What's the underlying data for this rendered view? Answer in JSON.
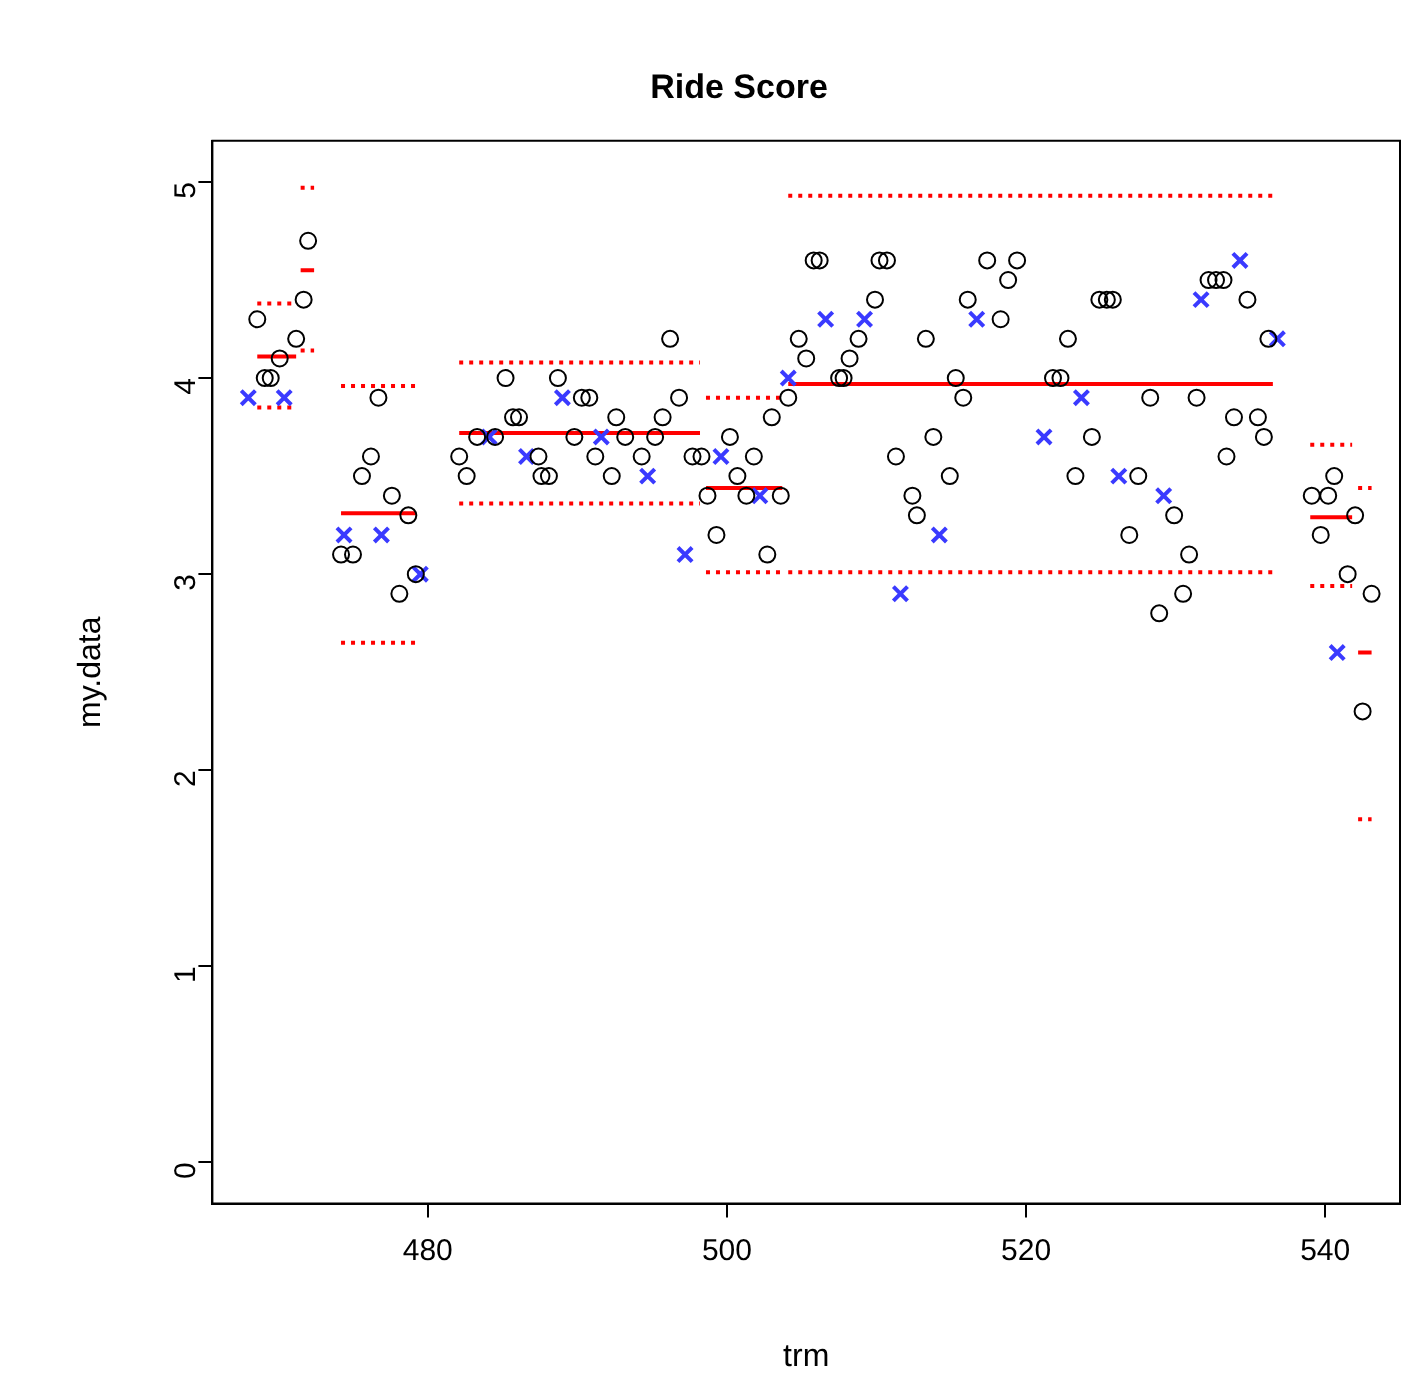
{
  "chart_data": {
    "type": "scatter",
    "title": "Ride Score",
    "xlabel": "trm",
    "ylabel": "my.data",
    "xlim": [
      465.6,
      545
    ],
    "ylim": [
      -0.21,
      5.21
    ],
    "xticks": [
      480,
      500,
      520,
      540
    ],
    "yticks": [
      0,
      1,
      2,
      3,
      4,
      5
    ],
    "grid": false,
    "legend": false,
    "series": [
      {
        "type": "scatter",
        "marker": "circle",
        "color": "#000000",
        "x": [
          468.6,
          469.1,
          469.5,
          470.1,
          471.2,
          471.7,
          472.0,
          474.2,
          475.0,
          475.6,
          476.2,
          476.7,
          477.6,
          478.1,
          478.7,
          479.2,
          482.1,
          482.6,
          483.3,
          484.5,
          485.2,
          485.7,
          486.1,
          487.4,
          487.6,
          488.1,
          488.7,
          489.8,
          490.3,
          490.8,
          491.2,
          492.3,
          492.6,
          493.2,
          494.3,
          495.2,
          495.7,
          496.2,
          496.8,
          497.7,
          498.3,
          498.7,
          499.3,
          500.2,
          500.7,
          501.3,
          501.8,
          502.7,
          503.0,
          503.6,
          504.1,
          504.8,
          505.3,
          505.8,
          506.2,
          507.5,
          507.8,
          508.2,
          508.8,
          509.9,
          510.2,
          510.7,
          511.3,
          512.4,
          512.7,
          513.3,
          513.8,
          514.9,
          515.3,
          515.8,
          516.1,
          517.4,
          518.3,
          518.8,
          519.4,
          521.8,
          522.3,
          522.8,
          523.3,
          524.4,
          524.9,
          525.4,
          525.8,
          526.9,
          527.5,
          528.3,
          528.9,
          529.9,
          530.5,
          530.9,
          531.4,
          532.2,
          532.7,
          533.2,
          533.4,
          533.9,
          534.8,
          535.5,
          535.9,
          536.2,
          539.1,
          539.7,
          540.2,
          540.6,
          541.5,
          542.0,
          542.5,
          543.1
        ],
        "values": [
          4.3,
          4.0,
          4.0,
          4.1,
          4.2,
          4.4,
          4.7,
          3.1,
          3.1,
          3.5,
          3.6,
          3.9,
          3.4,
          2.9,
          3.3,
          3.0,
          3.6,
          3.5,
          3.7,
          3.7,
          4.0,
          3.8,
          3.8,
          3.6,
          3.5,
          3.5,
          4.0,
          3.7,
          3.9,
          3.9,
          3.6,
          3.5,
          3.8,
          3.7,
          3.6,
          3.7,
          3.8,
          4.2,
          3.9,
          3.6,
          3.6,
          3.4,
          3.2,
          3.7,
          3.5,
          3.4,
          3.6,
          3.1,
          3.8,
          3.4,
          3.9,
          4.2,
          4.1,
          4.6,
          4.6,
          4.0,
          4.0,
          4.1,
          4.2,
          4.4,
          4.6,
          4.6,
          3.6,
          3.4,
          3.3,
          4.2,
          3.7,
          3.5,
          4.0,
          3.9,
          4.4,
          4.6,
          4.3,
          4.5,
          4.6,
          4.0,
          4.0,
          4.2,
          3.5,
          3.7,
          4.4,
          4.4,
          4.4,
          3.2,
          3.5,
          3.9,
          2.8,
          3.3,
          2.9,
          3.1,
          3.9,
          4.5,
          4.5,
          4.5,
          3.6,
          3.8,
          4.4,
          3.8,
          3.7,
          4.2,
          3.4,
          3.2,
          3.4,
          3.5,
          3.0,
          3.3,
          2.3,
          2.9
        ]
      },
      {
        "type": "scatter",
        "marker": "cross",
        "color": "#3a3aff",
        "x": [
          468.0,
          470.4,
          474.4,
          476.9,
          479.5,
          484.1,
          486.6,
          489.0,
          491.6,
          494.7,
          497.2,
          499.6,
          502.2,
          504.1,
          506.6,
          509.2,
          511.6,
          514.2,
          516.7,
          521.2,
          523.7,
          526.2,
          529.2,
          531.7,
          534.3,
          536.8,
          540.8
        ],
        "values": [
          3.9,
          3.9,
          3.2,
          3.2,
          3.0,
          3.7,
          3.6,
          3.9,
          3.7,
          3.5,
          3.1,
          3.6,
          3.4,
          4.0,
          4.3,
          4.3,
          2.9,
          3.2,
          4.3,
          3.7,
          3.9,
          3.5,
          3.4,
          4.4,
          4.6,
          4.2,
          2.6
        ]
      },
      {
        "type": "line",
        "line_style": "solid",
        "marker": "none",
        "color": "#ff0000",
        "x": [
          468.6,
          471.2,
          471.35,
          471.5,
          472.4,
          473.1,
          474.2,
          479.2,
          480.6,
          482.1,
          498.2,
          498.4,
          498.6,
          503.7,
          503.9,
          504.1,
          536.5,
          537.7,
          539.0,
          541.8,
          542.0,
          542.2,
          543.1
        ],
        "values": [
          4.11,
          4.11,
          null,
          4.55,
          4.55,
          null,
          3.31,
          3.31,
          null,
          3.72,
          3.72,
          null,
          3.44,
          3.44,
          null,
          3.97,
          3.97,
          null,
          3.29,
          3.29,
          null,
          2.6,
          2.6
        ]
      },
      {
        "type": "line",
        "line_style": "dotted",
        "marker": "none",
        "color": "#ff0000",
        "x": [
          468.6,
          471.2,
          471.35,
          471.5,
          472.4,
          473.1,
          474.2,
          479.2,
          480.6,
          482.1,
          498.2,
          498.4,
          498.6,
          503.7,
          503.9,
          504.1,
          536.5,
          537.7,
          539.0,
          541.8,
          542.0,
          542.2,
          543.1
        ],
        "values": [
          4.38,
          4.38,
          null,
          4.97,
          4.97,
          null,
          3.96,
          3.96,
          null,
          4.08,
          4.08,
          null,
          3.9,
          3.9,
          null,
          4.93,
          4.93,
          null,
          3.66,
          3.66,
          null,
          3.44,
          3.44
        ]
      },
      {
        "type": "line",
        "line_style": "dotted",
        "marker": "none",
        "color": "#ff0000",
        "x": [
          468.6,
          471.2,
          471.35,
          471.5,
          472.4,
          473.1,
          474.2,
          479.2,
          480.6,
          482.1,
          498.2,
          498.4,
          498.6,
          503.7,
          503.9,
          504.1,
          536.5,
          537.7,
          539.0,
          541.8,
          542.0,
          542.2,
          543.1
        ],
        "values": [
          3.85,
          3.85,
          null,
          4.14,
          4.14,
          null,
          2.65,
          2.65,
          null,
          3.36,
          3.36,
          null,
          3.01,
          3.01,
          null,
          3.01,
          3.01,
          null,
          2.94,
          2.94,
          null,
          1.75,
          1.75
        ]
      }
    ]
  }
}
